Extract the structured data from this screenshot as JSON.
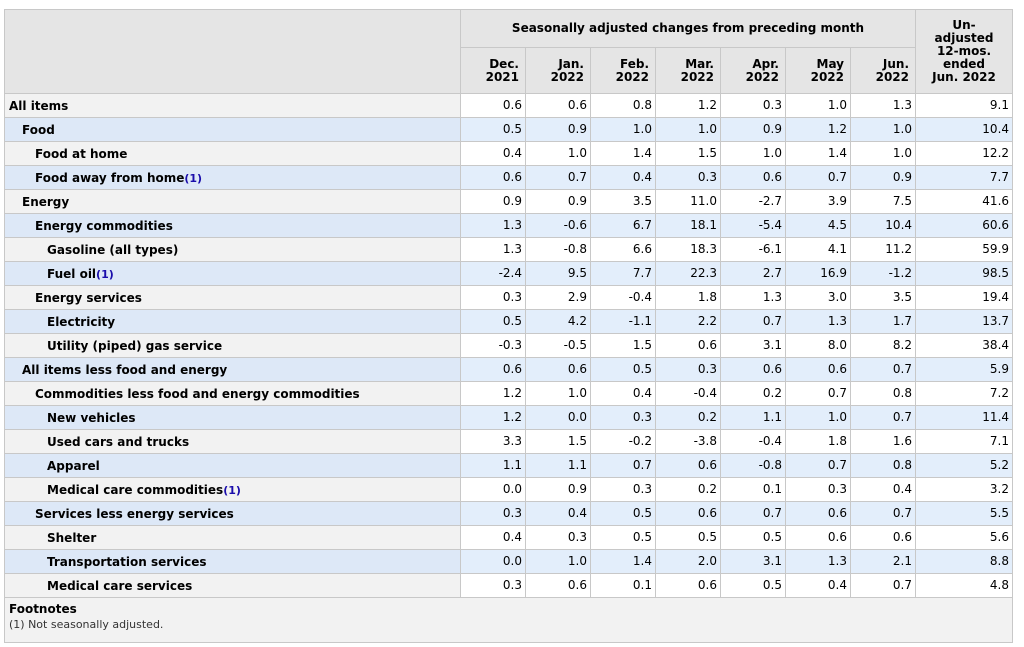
{
  "header": {
    "group_label": "Seasonally adjusted changes from preceding month",
    "last_label": "Un-\nadjusted\n12-mos.\nended\nJun. 2022",
    "months": [
      "Dec.\n2021",
      "Jan.\n2022",
      "Feb.\n2022",
      "Mar.\n2022",
      "Apr.\n2022",
      "May\n2022",
      "Jun.\n2022"
    ]
  },
  "rows": [
    {
      "label": "All items",
      "level": 1,
      "values": [
        "0.6",
        "0.6",
        "0.8",
        "1.2",
        "0.3",
        "1.0",
        "1.3",
        "9.1"
      ]
    },
    {
      "label": "Food",
      "level": 2,
      "values": [
        "0.5",
        "0.9",
        "1.0",
        "1.0",
        "0.9",
        "1.2",
        "1.0",
        "10.4"
      ]
    },
    {
      "label": "Food at home",
      "level": 3,
      "values": [
        "0.4",
        "1.0",
        "1.4",
        "1.5",
        "1.0",
        "1.4",
        "1.0",
        "12.2"
      ]
    },
    {
      "label": "Food away from home",
      "footnote": "(1)",
      "level": 3,
      "values": [
        "0.6",
        "0.7",
        "0.4",
        "0.3",
        "0.6",
        "0.7",
        "0.9",
        "7.7"
      ]
    },
    {
      "label": "Energy",
      "level": 2,
      "values": [
        "0.9",
        "0.9",
        "3.5",
        "11.0",
        "-2.7",
        "3.9",
        "7.5",
        "41.6"
      ]
    },
    {
      "label": "Energy commodities",
      "level": 3,
      "values": [
        "1.3",
        "-0.6",
        "6.7",
        "18.1",
        "-5.4",
        "4.5",
        "10.4",
        "60.6"
      ]
    },
    {
      "label": "Gasoline (all types)",
      "level": 4,
      "values": [
        "1.3",
        "-0.8",
        "6.6",
        "18.3",
        "-6.1",
        "4.1",
        "11.2",
        "59.9"
      ]
    },
    {
      "label": "Fuel oil",
      "footnote": "(1)",
      "level": 4,
      "values": [
        "-2.4",
        "9.5",
        "7.7",
        "22.3",
        "2.7",
        "16.9",
        "-1.2",
        "98.5"
      ]
    },
    {
      "label": "Energy services",
      "level": 3,
      "values": [
        "0.3",
        "2.9",
        "-0.4",
        "1.8",
        "1.3",
        "3.0",
        "3.5",
        "19.4"
      ]
    },
    {
      "label": "Electricity",
      "level": 4,
      "values": [
        "0.5",
        "4.2",
        "-1.1",
        "2.2",
        "0.7",
        "1.3",
        "1.7",
        "13.7"
      ]
    },
    {
      "label": "Utility (piped) gas service",
      "level": 4,
      "values": [
        "-0.3",
        "-0.5",
        "1.5",
        "0.6",
        "3.1",
        "8.0",
        "8.2",
        "38.4"
      ]
    },
    {
      "label": "All items less food and energy",
      "level": 2,
      "values": [
        "0.6",
        "0.6",
        "0.5",
        "0.3",
        "0.6",
        "0.6",
        "0.7",
        "5.9"
      ]
    },
    {
      "label": "Commodities less food and energy commodities",
      "level": 3,
      "values": [
        "1.2",
        "1.0",
        "0.4",
        "-0.4",
        "0.2",
        "0.7",
        "0.8",
        "7.2"
      ]
    },
    {
      "label": "New vehicles",
      "level": 4,
      "values": [
        "1.2",
        "0.0",
        "0.3",
        "0.2",
        "1.1",
        "1.0",
        "0.7",
        "11.4"
      ]
    },
    {
      "label": "Used cars and trucks",
      "level": 4,
      "values": [
        "3.3",
        "1.5",
        "-0.2",
        "-3.8",
        "-0.4",
        "1.8",
        "1.6",
        "7.1"
      ]
    },
    {
      "label": "Apparel",
      "level": 4,
      "values": [
        "1.1",
        "1.1",
        "0.7",
        "0.6",
        "-0.8",
        "0.7",
        "0.8",
        "5.2"
      ]
    },
    {
      "label": "Medical care commodities",
      "footnote": "(1)",
      "level": 4,
      "values": [
        "0.0",
        "0.9",
        "0.3",
        "0.2",
        "0.1",
        "0.3",
        "0.4",
        "3.2"
      ]
    },
    {
      "label": "Services less energy services",
      "level": 3,
      "values": [
        "0.3",
        "0.4",
        "0.5",
        "0.6",
        "0.7",
        "0.6",
        "0.7",
        "5.5"
      ]
    },
    {
      "label": "Shelter",
      "level": 4,
      "values": [
        "0.4",
        "0.3",
        "0.5",
        "0.5",
        "0.5",
        "0.6",
        "0.6",
        "5.6"
      ]
    },
    {
      "label": "Transportation services",
      "level": 4,
      "values": [
        "0.0",
        "1.0",
        "1.4",
        "2.0",
        "3.1",
        "1.3",
        "2.1",
        "8.8"
      ]
    },
    {
      "label": "Medical care services",
      "level": 4,
      "values": [
        "0.3",
        "0.6",
        "0.1",
        "0.6",
        "0.5",
        "0.4",
        "0.7",
        "4.8"
      ]
    }
  ],
  "footnotes": {
    "title": "Footnotes",
    "items": [
      "(1) Not seasonally adjusted."
    ]
  },
  "colors": {
    "header_bg": "#e5e5e5",
    "row_alt_bg": "#e3eefb",
    "link": "#1a0dab"
  }
}
